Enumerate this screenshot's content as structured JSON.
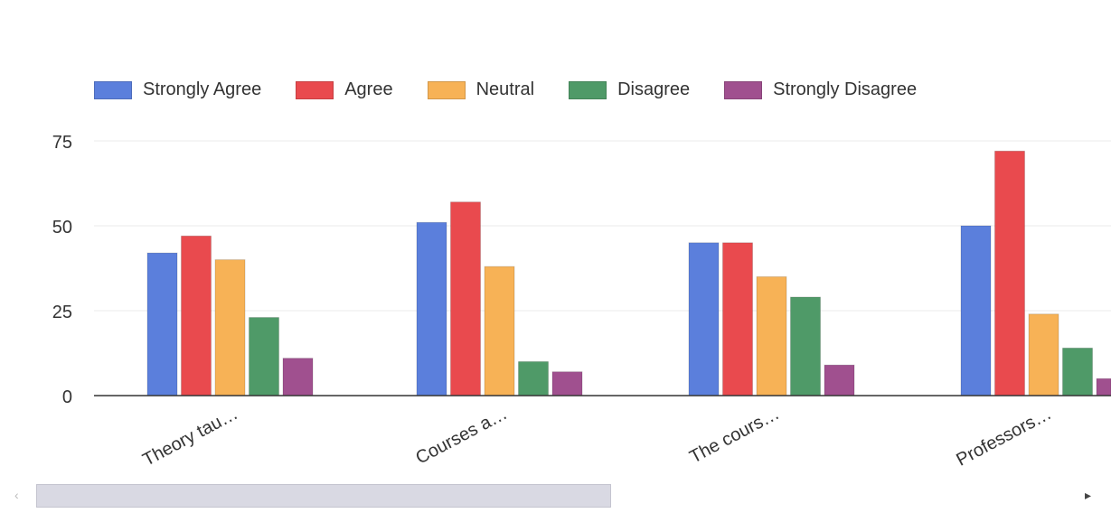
{
  "chart_data": {
    "type": "bar",
    "categories": [
      "Theory tau…",
      "Courses a…",
      "The cours…",
      "Professors…"
    ],
    "series": [
      {
        "name": "Strongly Agree",
        "color": "#5b7fdc",
        "values": [
          42,
          51,
          45,
          50
        ]
      },
      {
        "name": "Agree",
        "color": "#e94a4e",
        "values": [
          47,
          57,
          45,
          72
        ]
      },
      {
        "name": "Neutral",
        "color": "#f7b256",
        "values": [
          40,
          38,
          35,
          24
        ]
      },
      {
        "name": "Disagree",
        "color": "#4f9a68",
        "values": [
          23,
          10,
          29,
          14
        ]
      },
      {
        "name": "Strongly Disagree",
        "color": "#a0508f",
        "values": [
          11,
          7,
          9,
          5
        ]
      }
    ],
    "yticks": [
      0,
      25,
      50,
      75
    ],
    "ylim": [
      0,
      75
    ],
    "grid": true,
    "legend_position": "top-left",
    "title": "",
    "xlabel": "",
    "ylabel": ""
  },
  "scrollbar": {
    "left_arrow": "‹",
    "right_arrow": "▸"
  }
}
